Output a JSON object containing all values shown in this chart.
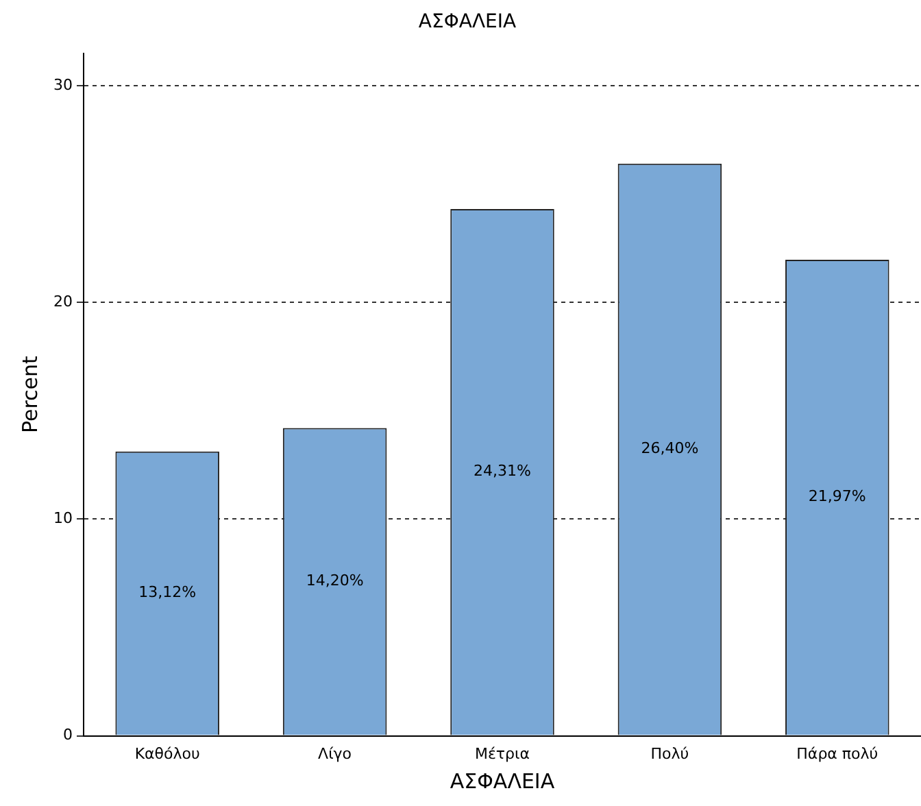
{
  "chart_data": {
    "type": "bar",
    "title": "ΑΣΦΑΛΕΙΑ",
    "xlabel": "ΑΣΦΑΛΕΙΑ",
    "ylabel": "Percent",
    "categories": [
      "Καθόλου",
      "Λίγο",
      "Μέτρια",
      "Πολύ",
      "Πάρα πολύ"
    ],
    "values": [
      13.12,
      14.2,
      24.31,
      26.4,
      21.97
    ],
    "value_labels": [
      "13,12%",
      "14,20%",
      "24,31%",
      "26,40%",
      "21,97%"
    ],
    "color": "#7aa8d6",
    "ylim": [
      0,
      31.5
    ],
    "yticks": [
      0,
      10,
      20,
      30
    ],
    "grid": "y",
    "legend": false
  }
}
